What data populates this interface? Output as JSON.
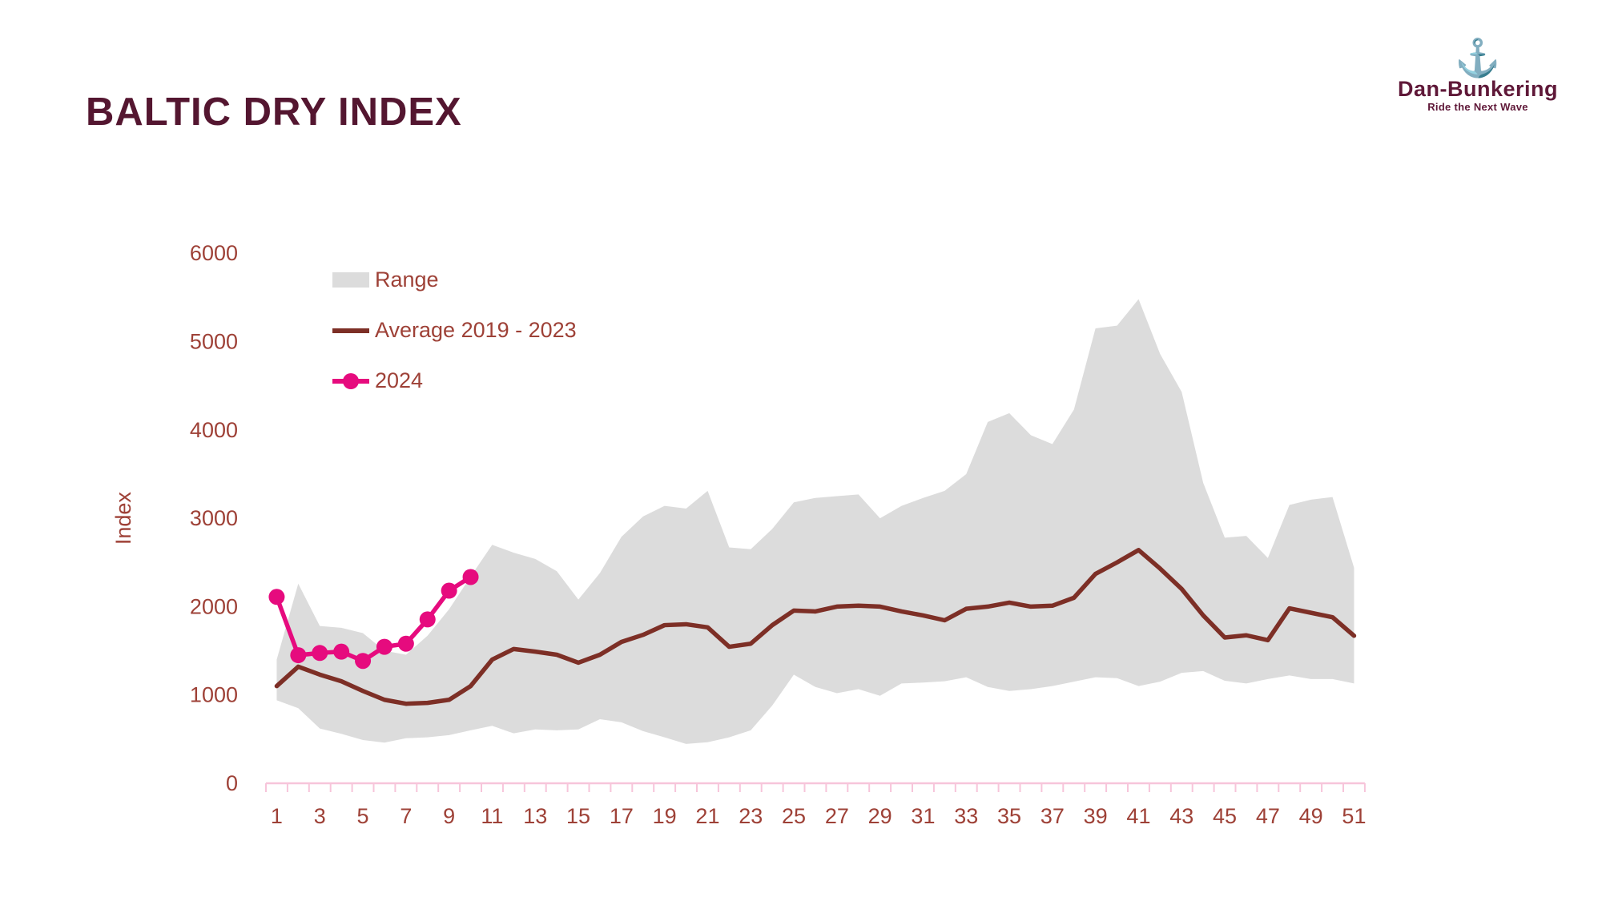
{
  "title": "BALTIC DRY INDEX",
  "logo": {
    "icon": "anchor-icon",
    "glyph": "⚓",
    "name": "Dan-Bunkering",
    "tagline": "Ride the Next Wave"
  },
  "legend": {
    "range_label": "Range",
    "average_label": "Average 2019 - 2023",
    "y2024_label": "2024"
  },
  "colors": {
    "title": "#541630",
    "logo": "#5f1838",
    "label_text": "#9e4137",
    "range_fill": "#dcdcdc",
    "average_line": "#7d2f26",
    "line_2024": "#e60b7e",
    "axis_line": "#f7c5da"
  },
  "chart_data": {
    "type": "area",
    "title": "BALTIC DRY INDEX",
    "xlabel": "",
    "ylabel": "Index",
    "x": [
      1,
      2,
      3,
      4,
      5,
      6,
      7,
      8,
      9,
      10,
      11,
      12,
      13,
      14,
      15,
      16,
      17,
      18,
      19,
      20,
      21,
      22,
      23,
      24,
      25,
      26,
      27,
      28,
      29,
      30,
      31,
      32,
      33,
      34,
      35,
      36,
      37,
      38,
      39,
      40,
      41,
      42,
      43,
      44,
      45,
      46,
      47,
      48,
      49,
      50,
      51
    ],
    "x_tick_labels": [
      1,
      3,
      5,
      7,
      9,
      11,
      13,
      15,
      17,
      19,
      21,
      23,
      25,
      27,
      29,
      31,
      33,
      35,
      37,
      39,
      41,
      43,
      45,
      47,
      49,
      51
    ],
    "ylim": [
      0,
      6000
    ],
    "ytick_step": 1000,
    "y_tick_labels": [
      0,
      1000,
      2000,
      3000,
      4000,
      5000,
      6000
    ],
    "grid": false,
    "legend_position": "upper-left-inside",
    "series": [
      {
        "name": "Range",
        "type": "band",
        "upper": [
          1400,
          2260,
          1780,
          1760,
          1700,
          1500,
          1455,
          1670,
          1970,
          2340,
          2700,
          2610,
          2540,
          2400,
          2080,
          2380,
          2790,
          3020,
          3140,
          3110,
          3310,
          2670,
          2650,
          2880,
          3180,
          3230,
          3250,
          3270,
          3000,
          3140,
          3230,
          3310,
          3500,
          4090,
          4190,
          3940,
          3840,
          4230,
          5150,
          5180,
          5480,
          4860,
          4430,
          3400,
          2780,
          2800,
          2550,
          3150,
          3210,
          3240,
          2440
        ],
        "lower": [
          940,
          850,
          620,
          560,
          490,
          460,
          510,
          520,
          545,
          600,
          650,
          565,
          610,
          600,
          610,
          725,
          690,
          590,
          520,
          445,
          465,
          520,
          600,
          880,
          1230,
          1090,
          1020,
          1065,
          990,
          1130,
          1140,
          1155,
          1200,
          1090,
          1045,
          1065,
          1100,
          1150,
          1200,
          1190,
          1100,
          1150,
          1250,
          1270,
          1160,
          1130,
          1180,
          1220,
          1180,
          1180,
          1130
        ]
      },
      {
        "name": "Average 2019 - 2023",
        "type": "line",
        "values": [
          1100,
          1320,
          1230,
          1155,
          1045,
          945,
          900,
          910,
          945,
          1100,
          1400,
          1520,
          1490,
          1455,
          1365,
          1455,
          1600,
          1680,
          1790,
          1800,
          1765,
          1545,
          1580,
          1790,
          1955,
          1945,
          2000,
          2010,
          2000,
          1945,
          1900,
          1845,
          1975,
          2000,
          2045,
          2000,
          2010,
          2100,
          2370,
          2500,
          2640,
          2430,
          2200,
          1900,
          1650,
          1675,
          1620,
          1980,
          1930,
          1880,
          1670
        ]
      },
      {
        "name": "2024",
        "type": "line+marker",
        "values": [
          2110,
          1450,
          1475,
          1490,
          1385,
          1545,
          1580,
          1855,
          2180,
          2335
        ]
      }
    ]
  }
}
